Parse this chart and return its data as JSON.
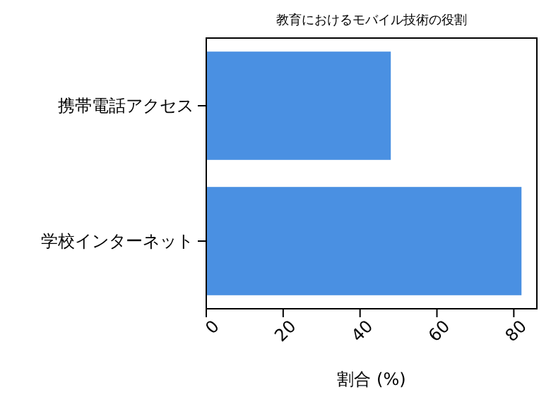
{
  "chart_data": {
    "type": "bar",
    "orientation": "horizontal",
    "title": "教育におけるモバイル技術の役割",
    "xlabel": "割合 (%)",
    "categories": [
      "携帯電話アクセス",
      "学校インターネット"
    ],
    "values": [
      48,
      82
    ],
    "color": "#4a90e2",
    "xlim": [
      0,
      86
    ],
    "xticks": [
      0,
      20,
      40,
      60,
      80
    ],
    "grid": false
  }
}
